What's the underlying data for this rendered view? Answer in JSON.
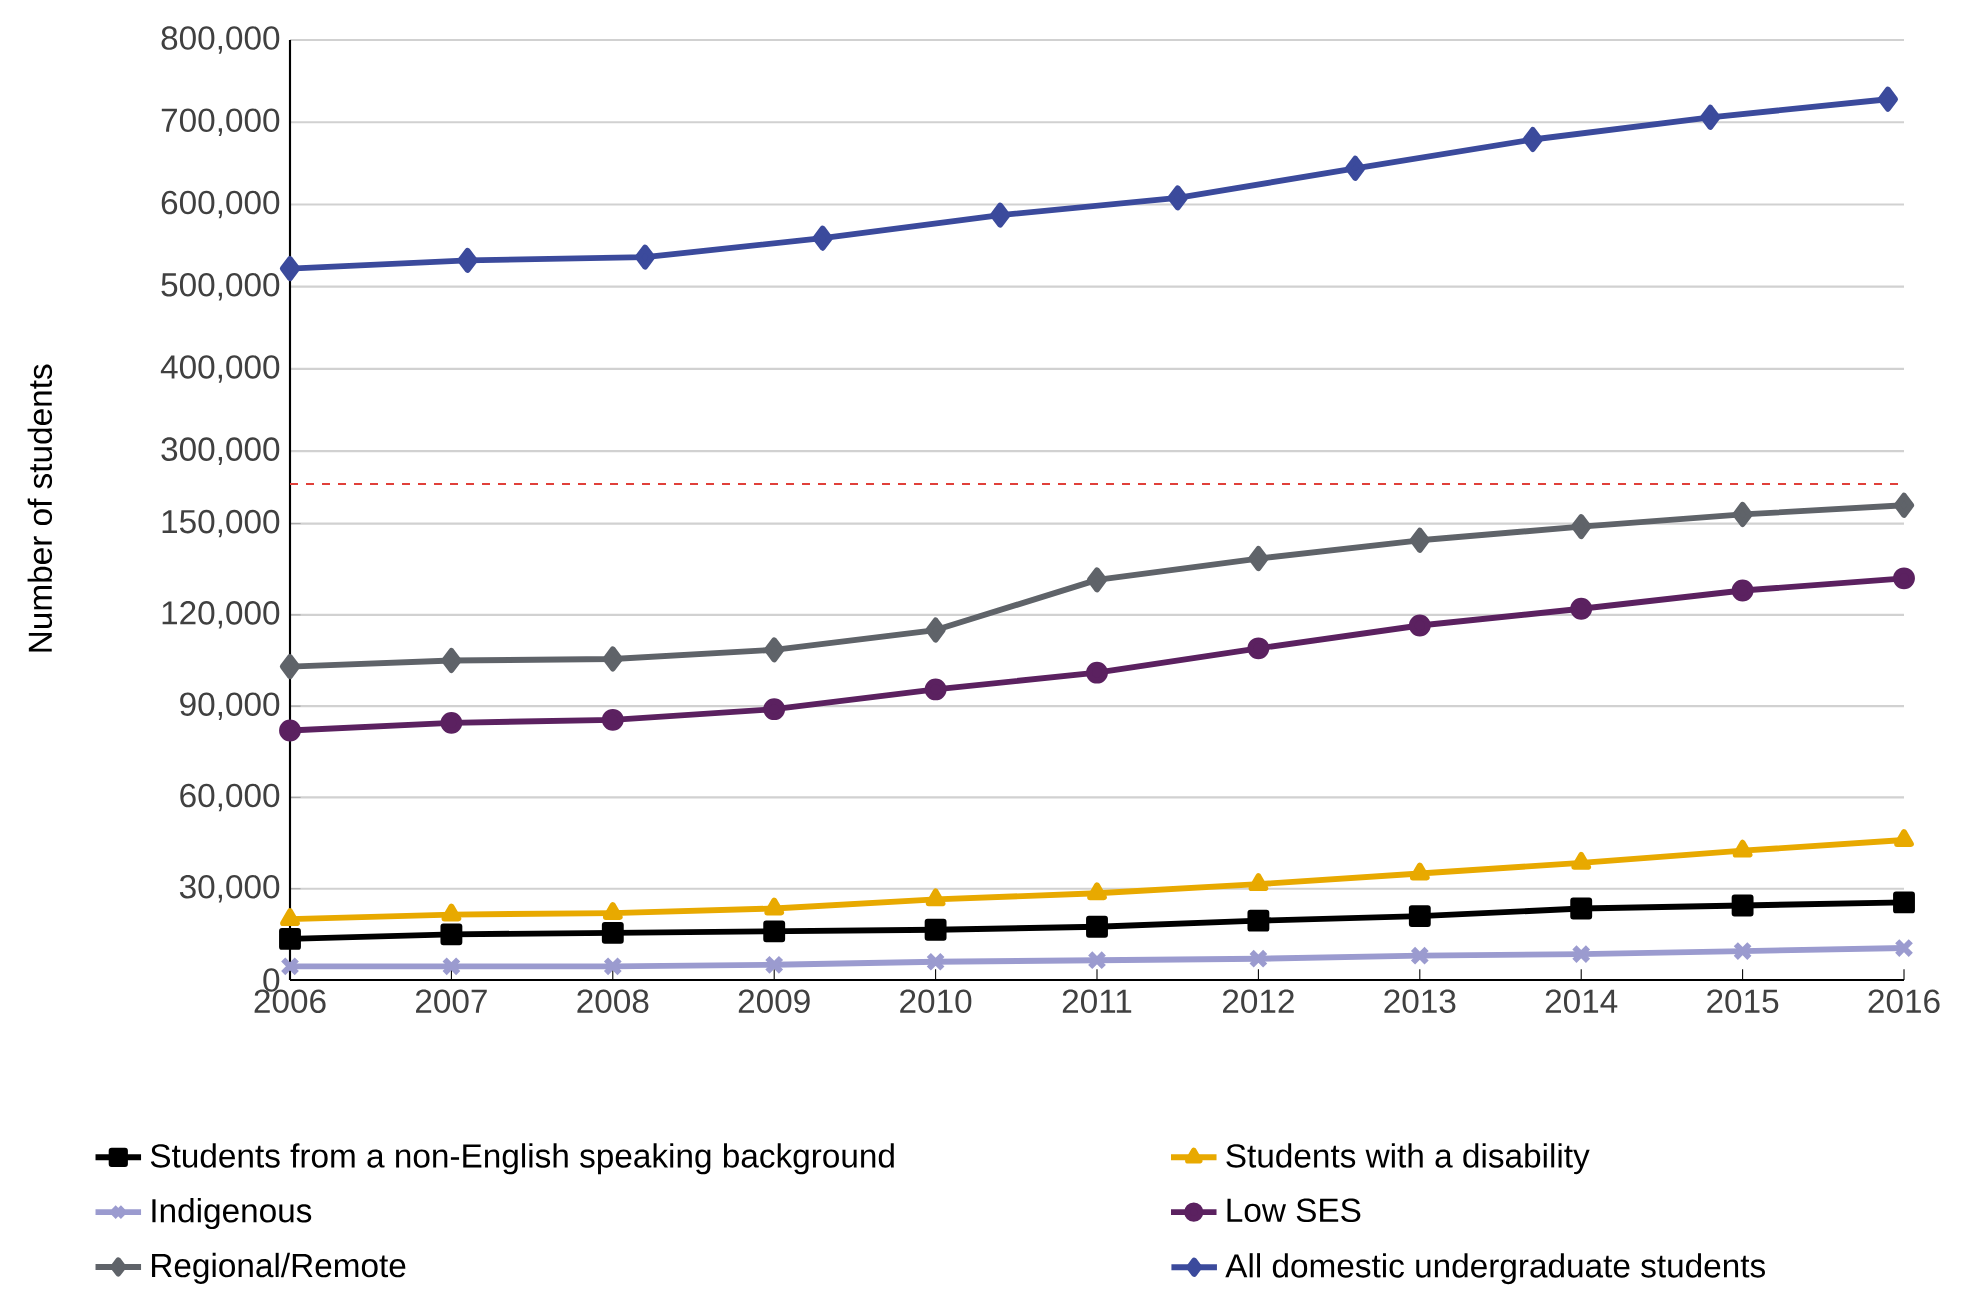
{
  "chart_data": [
    {
      "type": "line",
      "xlim": [
        2006,
        2016
      ],
      "xticks": [
        2006,
        2007,
        2008,
        2009,
        2010,
        2011,
        2012,
        2013,
        2014,
        2015,
        2016
      ],
      "ylim": [
        260000,
        800000
      ],
      "yticks": [
        {
          "value": 300000,
          "label": "300,000"
        },
        {
          "value": 400000,
          "label": "400,000"
        },
        {
          "value": 500000,
          "label": "500,000"
        },
        {
          "value": 600000,
          "label": "600,000"
        },
        {
          "value": 700000,
          "label": "700,000"
        },
        {
          "value": 800000,
          "label": "800,000"
        }
      ],
      "tick_labels": "y",
      "grid": "y",
      "legend": "bottom",
      "series": [
        {
          "name": "All domestic undergraduate students",
          "color": "#3b4a9c",
          "marker": "diamond",
          "x": [
            2006.0,
            2007.1,
            2008.2,
            2009.3,
            2010.4,
            2011.5,
            2012.6,
            2013.7,
            2014.8,
            2015.9
          ],
          "values": [
            522000,
            532000,
            536000,
            559000,
            587000,
            608000,
            644000,
            679000,
            706000,
            728000
          ]
        }
      ]
    },
    {
      "type": "line",
      "ylabel": "Number of students",
      "xlim": [
        2006,
        2016
      ],
      "xticks": [
        2006,
        2007,
        2008,
        2009,
        2010,
        2011,
        2012,
        2013,
        2014,
        2015,
        2016
      ],
      "ylim": [
        0,
        163000
      ],
      "yticks": [
        0,
        {
          "value": 30000,
          "label": "30,000"
        },
        {
          "value": 60000,
          "label": "60,000"
        },
        {
          "value": 90000,
          "label": "90,000"
        },
        {
          "value": 120000,
          "label": "120,000"
        },
        {
          "value": 150000,
          "label": "150,000"
        }
      ],
      "x": [
        2006,
        2007,
        2008,
        2009,
        2010,
        2011,
        2012,
        2013,
        2014,
        2015,
        2016
      ],
      "grid": "y",
      "legend": "bottom",
      "ref_lines": [
        {
          "axis": "y",
          "value": 163000,
          "color": "#e0403a",
          "line_style": "dashed"
        }
      ],
      "series": [
        {
          "name": "Students from a non-English speaking background",
          "color": "#000000",
          "marker": "square",
          "values": [
            13500,
            15000,
            15500,
            16000,
            16500,
            17500,
            19500,
            21000,
            23500,
            24500,
            25500
          ]
        },
        {
          "name": "Students with a disability",
          "color": "#e8a900",
          "marker": "triangle",
          "values": [
            20000,
            21500,
            22000,
            23500,
            26500,
            28500,
            31500,
            35000,
            38500,
            42500,
            46000
          ]
        },
        {
          "name": "Indigenous",
          "color": "#9b9bcf",
          "marker": "cross",
          "values": [
            4500,
            4500,
            4500,
            5000,
            6000,
            6500,
            7000,
            8000,
            8500,
            9500,
            10500
          ]
        },
        {
          "name": "Low SES",
          "color": "#5b2160",
          "marker": "circle",
          "values": [
            82000,
            84500,
            85500,
            89000,
            95500,
            101000,
            109000,
            116500,
            122000,
            128000,
            132000
          ]
        },
        {
          "name": "Regional/Remote",
          "color": "#5f6369",
          "marker": "diamond",
          "values": [
            103000,
            105000,
            105500,
            108500,
            115000,
            131500,
            138500,
            144500,
            149000,
            153000,
            156000
          ]
        }
      ]
    }
  ]
}
